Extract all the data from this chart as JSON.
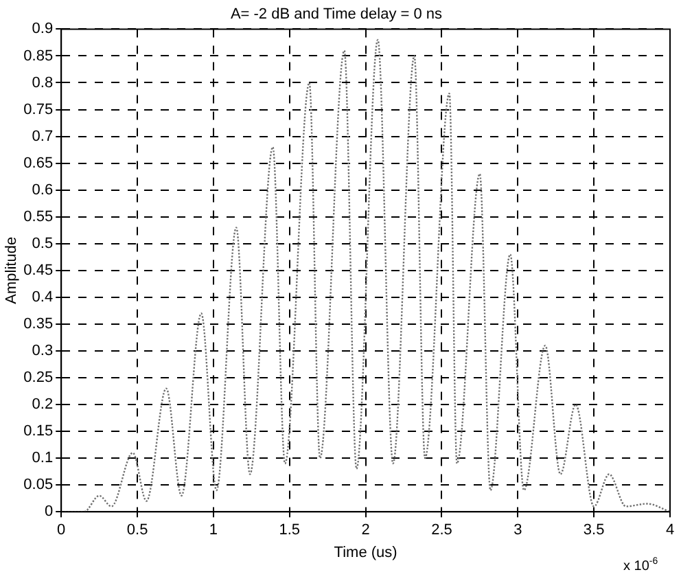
{
  "chart_data": {
    "type": "line",
    "title": "A= -2 dB and Time delay = 0 ns",
    "xlabel": "Time (us)",
    "ylabel": "Amplitude",
    "annotations": [
      "x 10$^{-6}$"
    ],
    "x": [
      0,
      0.15,
      0.25,
      0.33,
      0.47,
      0.56,
      0.69,
      0.79,
      0.92,
      1.02,
      1.15,
      1.24,
      1.39,
      1.47,
      1.63,
      1.7,
      1.86,
      1.94,
      2.08,
      2.18,
      2.32,
      2.39,
      2.55,
      2.6,
      2.75,
      2.82,
      2.95,
      3.04,
      3.18,
      3.28,
      3.38,
      3.5,
      3.6,
      3.71,
      3.85,
      4
    ],
    "series": [
      {
        "color": "#707070",
        "values": [
          0,
          0,
          0.03,
          0.01,
          0.11,
          0.02,
          0.23,
          0.03,
          0.37,
          0.04,
          0.53,
          0.07,
          0.68,
          0.09,
          0.8,
          0.1,
          0.86,
          0.08,
          0.88,
          0.09,
          0.85,
          0.1,
          0.78,
          0.09,
          0.63,
          0.04,
          0.48,
          0.04,
          0.31,
          0.07,
          0.2,
          0.01,
          0.07,
          0.01,
          0.015,
          0
        ]
      }
    ],
    "xlim": [
      0,
      4
    ],
    "xticks": [
      0,
      0.5,
      1,
      1.5,
      2,
      2.5,
      3,
      3.5,
      4
    ],
    "ylim": [
      0,
      0.9
    ],
    "yticks": [
      0,
      0.05,
      0.1,
      0.15,
      0.2,
      0.25,
      0.3,
      0.35,
      0.4,
      0.45,
      0.5,
      0.55,
      0.6,
      0.65,
      0.7,
      0.75,
      0.8,
      0.85,
      0.9
    ],
    "grid": true,
    "legend": false,
    "marker": "none",
    "line_style": "dotted"
  }
}
